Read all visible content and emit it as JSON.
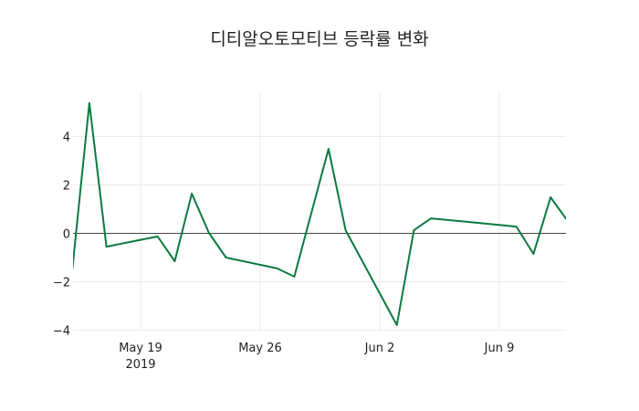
{
  "chart_data": {
    "type": "line",
    "title": "디티알오토모티브 등락률 변화",
    "xlabel": "",
    "ylabel": "",
    "x": [
      "2019-05-15",
      "2019-05-16",
      "2019-05-17",
      "2019-05-20",
      "2019-05-21",
      "2019-05-22",
      "2019-05-23",
      "2019-05-24",
      "2019-05-27",
      "2019-05-28",
      "2019-05-30",
      "2019-05-31",
      "2019-06-03",
      "2019-06-04",
      "2019-06-05",
      "2019-06-10",
      "2019-06-11",
      "2019-06-12",
      "2019-06-13"
    ],
    "series": [
      {
        "name": "등락률",
        "color": "#0b7a3e",
        "values": [
          -1.53,
          5.38,
          -0.55,
          -0.13,
          -1.15,
          1.64,
          0.02,
          -1.0,
          -1.45,
          -1.79,
          3.49,
          0.13,
          -3.79,
          0.13,
          0.62,
          0.28,
          -0.85,
          1.49,
          0.51
        ]
      }
    ],
    "x_ticks": [
      {
        "label": "May 19",
        "sub": "2019",
        "date": "2019-05-19"
      },
      {
        "label": "May 26",
        "sub": "",
        "date": "2019-05-26"
      },
      {
        "label": "Jun 2",
        "sub": "",
        "date": "2019-06-02"
      },
      {
        "label": "Jun 9",
        "sub": "",
        "date": "2019-06-09"
      }
    ],
    "y_ticks": [
      -4,
      -2,
      0,
      2,
      4
    ],
    "ylim": [
      -4.3,
      5.9
    ],
    "grid": true,
    "zero_line": true,
    "legend": false
  }
}
